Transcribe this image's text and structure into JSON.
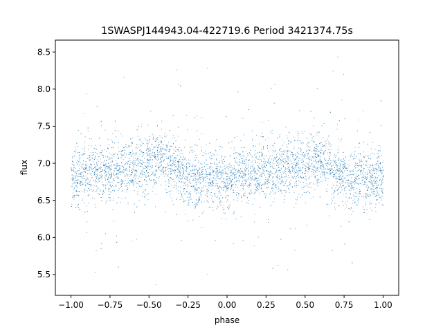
{
  "chart_data": {
    "type": "scatter",
    "title": "1SWASPJ144943.04-422719.6 Period 3421374.75s",
    "xlabel": "phase",
    "ylabel": "flux",
    "xlim": [
      -1.1,
      1.1
    ],
    "ylim": [
      5.22,
      8.66
    ],
    "xticks": [
      -1.0,
      -0.75,
      -0.5,
      -0.25,
      0.0,
      0.25,
      0.5,
      0.75,
      1.0
    ],
    "xtick_labels": [
      "−1.00",
      "−0.75",
      "−0.50",
      "−0.25",
      "0.00",
      "0.25",
      "0.50",
      "0.75",
      "1.00"
    ],
    "yticks": [
      5.5,
      6.0,
      6.5,
      7.0,
      7.5,
      8.0,
      8.5
    ],
    "ytick_labels": [
      "5.5",
      "6.0",
      "6.5",
      "7.0",
      "7.5",
      "8.0",
      "8.5"
    ],
    "grid": false,
    "marker_color": "#1f77b4",
    "series": [
      {
        "profile_phase": [
          0.0,
          0.1,
          0.2,
          0.3,
          0.35,
          0.4,
          0.5,
          0.55,
          0.6,
          0.65,
          0.7,
          0.8,
          0.9,
          1.0
        ],
        "median_flux": [
          6.8,
          6.85,
          6.87,
          6.9,
          6.95,
          6.95,
          7.0,
          7.05,
          7.05,
          6.95,
          6.85,
          6.8,
          6.78,
          6.8
        ],
        "flux_spread": 0.35,
        "x_range": [
          -1.0,
          1.0
        ]
      }
    ]
  }
}
